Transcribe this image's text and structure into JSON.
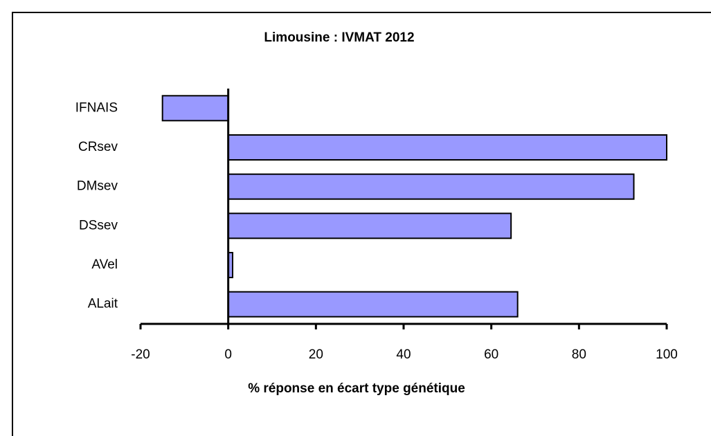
{
  "chart_data": {
    "type": "barh",
    "title": "Limousine : IVMAT 2012",
    "xlabel": "% réponse en écart type génétique",
    "categories": [
      "IFNAIS",
      "CRsev",
      "DMsev",
      "DSsev",
      "AVel",
      "ALait"
    ],
    "values": [
      -15,
      100,
      92.5,
      64.5,
      1,
      66
    ],
    "color": "#9999ff",
    "xlim": [
      -20,
      100
    ],
    "xticks": [
      -20,
      0,
      20,
      40,
      60,
      80,
      100
    ]
  }
}
